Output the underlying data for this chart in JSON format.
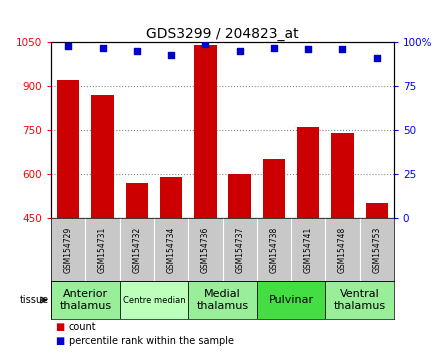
{
  "title": "GDS3299 / 204823_at",
  "samples": [
    "GSM154729",
    "GSM154731",
    "GSM154732",
    "GSM154734",
    "GSM154736",
    "GSM154737",
    "GSM154738",
    "GSM154741",
    "GSM154748",
    "GSM154753"
  ],
  "counts": [
    920,
    870,
    570,
    590,
    1040,
    600,
    650,
    760,
    740,
    500
  ],
  "percentiles": [
    98,
    97,
    95,
    93,
    99,
    95,
    97,
    96,
    96,
    91
  ],
  "ylim_left": [
    450,
    1050
  ],
  "ylim_right": [
    0,
    100
  ],
  "yticks_left": [
    450,
    600,
    750,
    900,
    1050
  ],
  "yticks_right": [
    0,
    25,
    50,
    75,
    100
  ],
  "bar_color": "#cc0000",
  "dot_color": "#0000cc",
  "sample_bg_color": "#c8c8c8",
  "grid_color": "#888888",
  "tissue_groups": [
    {
      "label": "Anterior\nthalamus",
      "start": 0,
      "end": 2,
      "color": "#99ee99",
      "fontsize": 8
    },
    {
      "label": "Centre median",
      "start": 2,
      "end": 4,
      "color": "#bbffbb",
      "fontsize": 6
    },
    {
      "label": "Medial\nthalamus",
      "start": 4,
      "end": 6,
      "color": "#99ee99",
      "fontsize": 8
    },
    {
      "label": "Pulvinar",
      "start": 6,
      "end": 8,
      "color": "#44dd44",
      "fontsize": 8
    },
    {
      "label": "Ventral\nthalamus",
      "start": 8,
      "end": 10,
      "color": "#99ee99",
      "fontsize": 8
    }
  ],
  "legend_count_label": "count",
  "legend_pct_label": "percentile rank within the sample",
  "tissue_label": "tissue"
}
